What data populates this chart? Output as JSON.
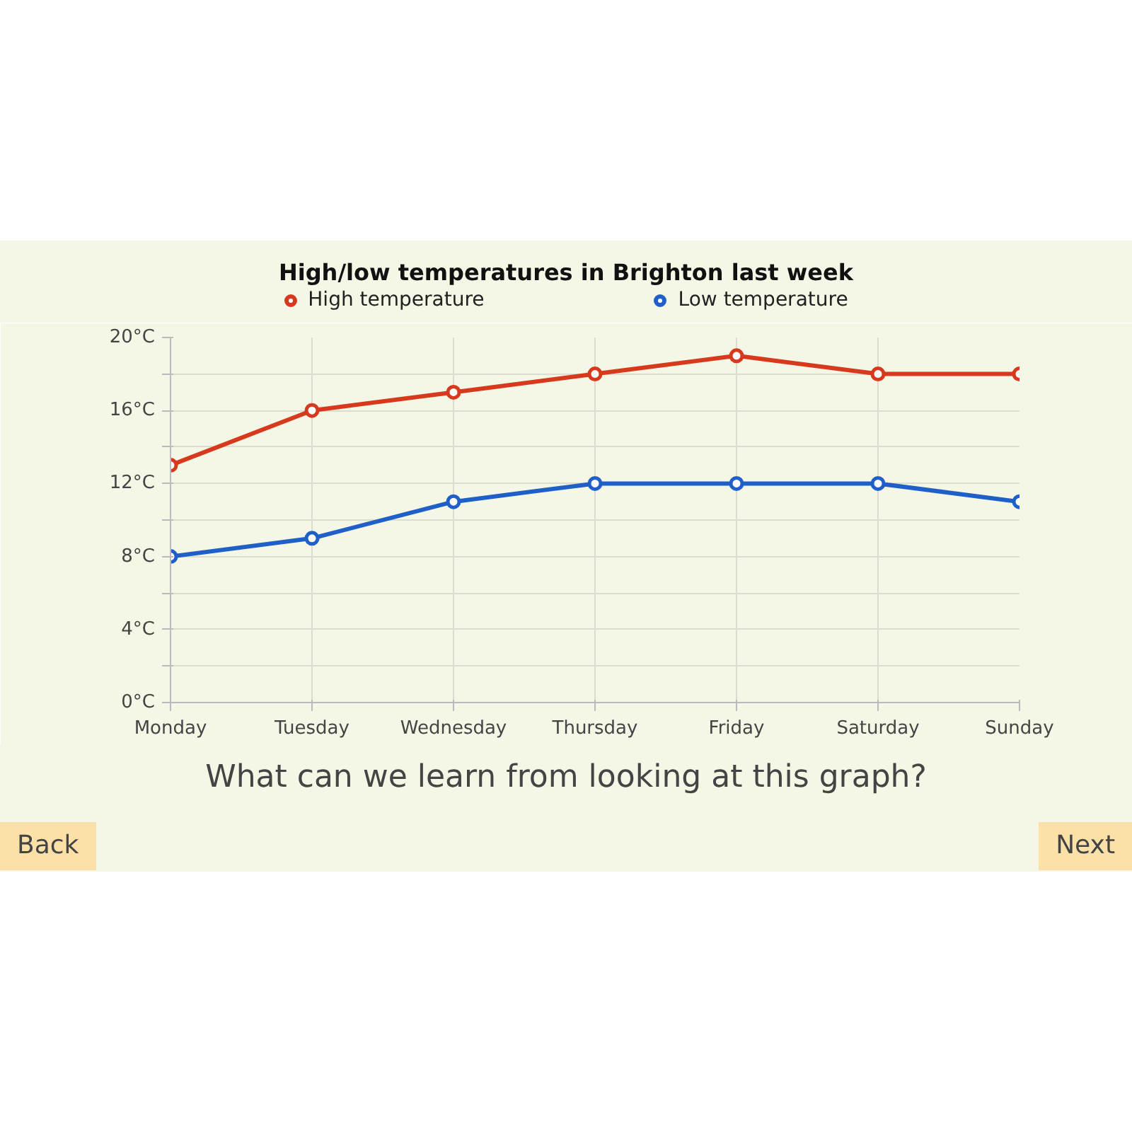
{
  "chart_data": {
    "type": "line",
    "title": "High/low temperatures in Brighton last week",
    "categories": [
      "Monday",
      "Tuesday",
      "Wednesday",
      "Thursday",
      "Friday",
      "Saturday",
      "Sunday"
    ],
    "series": [
      {
        "name": "High temperature",
        "color": "#d7391d",
        "values": [
          13,
          16,
          17,
          18,
          19,
          18,
          18
        ]
      },
      {
        "name": "Low temperature",
        "color": "#1f5fc8",
        "values": [
          8,
          9,
          11,
          12,
          12,
          12,
          11
        ]
      }
    ],
    "ylim": [
      0,
      20
    ],
    "yticks": [
      {
        "value": 0,
        "label": "0°C"
      },
      {
        "value": 2,
        "label": null
      },
      {
        "value": 4,
        "label": "4°C"
      },
      {
        "value": 6,
        "label": null
      },
      {
        "value": 8,
        "label": "8°C"
      },
      {
        "value": 10,
        "label": null
      },
      {
        "value": 12,
        "label": "12°C"
      },
      {
        "value": 14,
        "label": null
      },
      {
        "value": 16,
        "label": "16°C"
      },
      {
        "value": 18,
        "label": null
      },
      {
        "value": 20,
        "label": "20°C"
      }
    ],
    "grid": true,
    "legend": "top",
    "marker": "circle",
    "line_style": "solid",
    "annotations": [
      "What can we learn from looking at this graph?",
      "Back",
      "Next"
    ]
  }
}
